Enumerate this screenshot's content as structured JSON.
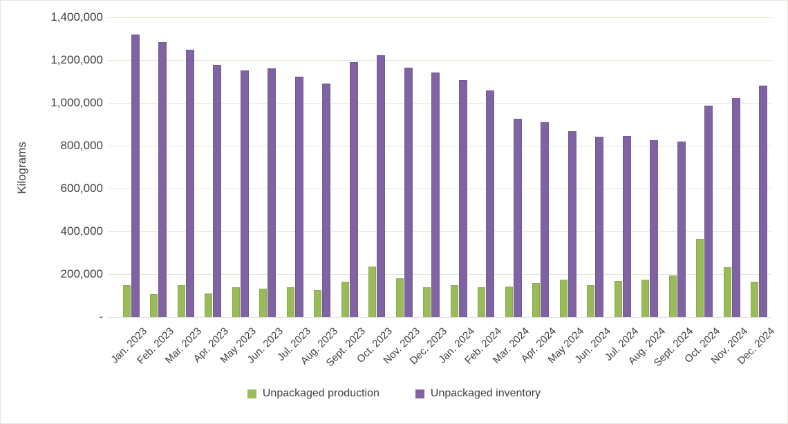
{
  "chart_data": {
    "type": "bar",
    "title": "",
    "xlabel": "",
    "ylabel": "Kilograms",
    "grid": true,
    "legend_position": "bottom",
    "ylim": [
      0,
      1400000
    ],
    "ytick_interval": 200000,
    "ytick_labels": [
      "-",
      "200,000",
      "400,000",
      "600,000",
      "800,000",
      "1,000,000",
      "1,200,000",
      "1,400,000"
    ],
    "categories": [
      "Jan. 2023",
      "Feb. 2023",
      "Mar. 2023",
      "Apr. 2023",
      "May 2023",
      "Jun. 2023",
      "Jul. 2023",
      "Aug. 2023",
      "Sept. 2023",
      "Oct. 2023",
      "Nov. 2023",
      "Dec. 2023",
      "Jan. 2024",
      "Feb. 2024",
      "Mar. 2024",
      "Apr. 2024",
      "May 2024",
      "Jun. 2024",
      "Jul. 2024",
      "Aug. 2024",
      "Sept. 2024",
      "Oct. 2024",
      "Nov. 2024",
      "Dec. 2024"
    ],
    "series": [
      {
        "name": "Unpackaged production",
        "color": "#9BBB59",
        "border_color": "#8aa84e",
        "values": [
          150000,
          107000,
          148000,
          111000,
          139000,
          133000,
          139000,
          126000,
          164000,
          236000,
          182000,
          138000,
          148000,
          139000,
          143000,
          158000,
          174000,
          150000,
          167000,
          174000,
          193000,
          363000,
          232000,
          165000
        ]
      },
      {
        "name": "Unpackaged inventory",
        "color": "#8064A2",
        "border_color": "#72589b",
        "values": [
          1318000,
          1285000,
          1248000,
          1177000,
          1153000,
          1162000,
          1122000,
          1090000,
          1190000,
          1221000,
          1165000,
          1142000,
          1107000,
          1058000,
          926000,
          909000,
          869000,
          843000,
          845000,
          826000,
          819000,
          986000,
          1022000,
          1080000
        ]
      }
    ]
  },
  "colors": {
    "gridline": "#e7e7d6",
    "axis_line": "#d9d9d9",
    "text": "#404040"
  }
}
